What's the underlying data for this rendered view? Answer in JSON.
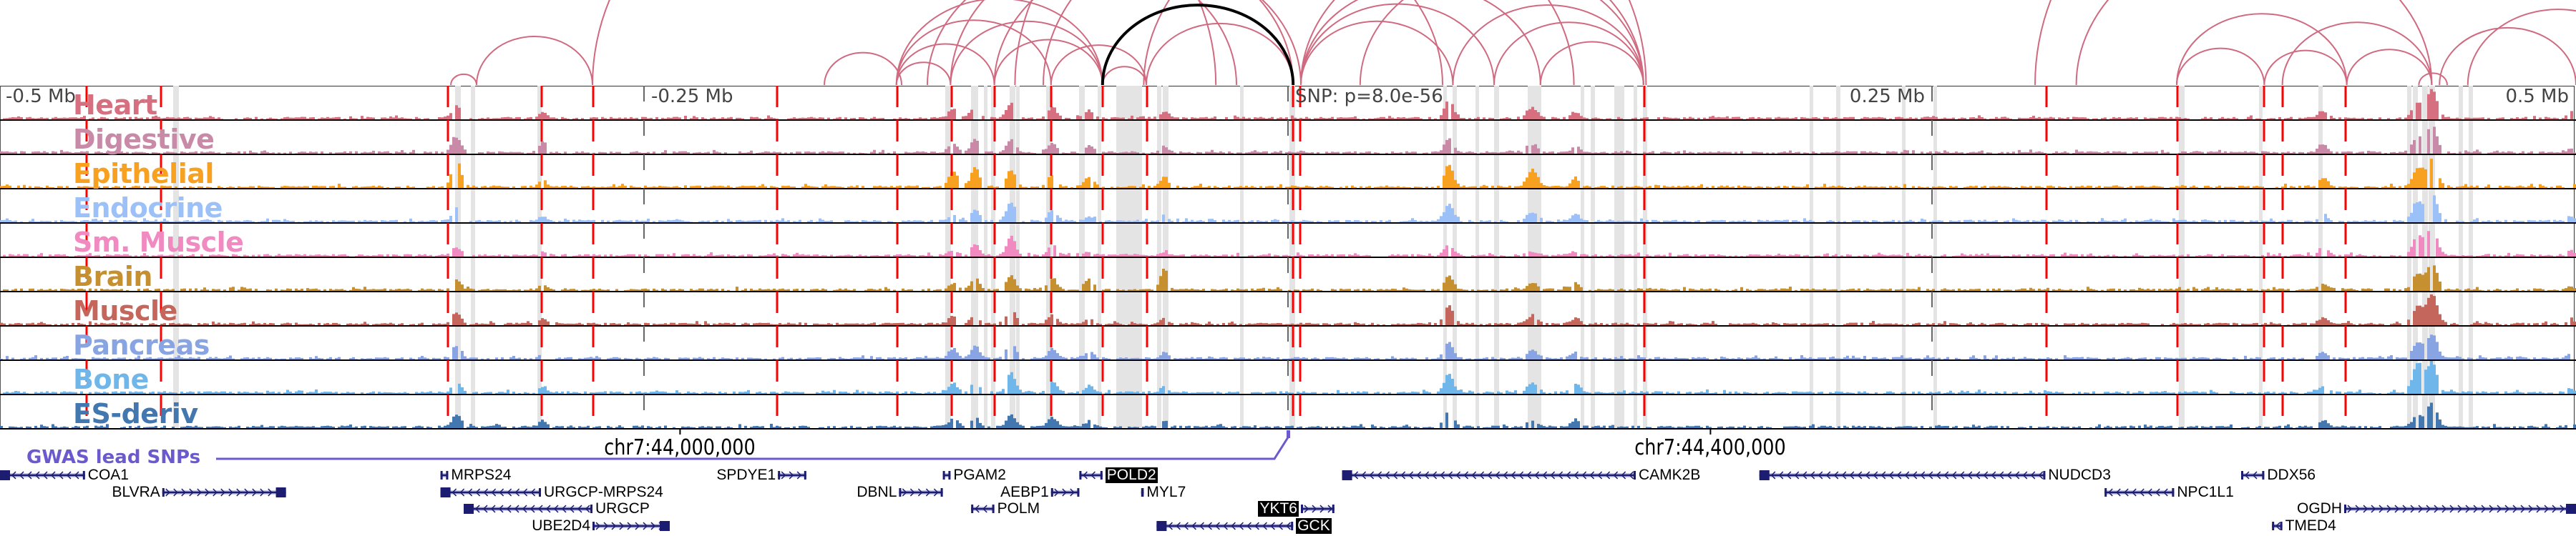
{
  "axis": {
    "left": "-0.5 Mb",
    "left_mid": "-0.25 Mb",
    "right_mid": "0.25 Mb",
    "right": "0.5 Mb"
  },
  "snp_label": "SNP: p=8.0e-56",
  "gwas_label": "GWAS lead SNPs",
  "coordinates": [
    {
      "label": "chr7:44,000,000",
      "kb": -236
    },
    {
      "label": "chr7:44,400,000",
      "kb": 164
    }
  ],
  "tracks": [
    {
      "name": "Heart",
      "color": "#d67080"
    },
    {
      "name": "Digestive",
      "color": "#c98aa8"
    },
    {
      "name": "Epithelial",
      "color": "#f8a020"
    },
    {
      "name": "Endocrine",
      "color": "#9cc0f8"
    },
    {
      "name": "Sm. Muscle",
      "color": "#f08ac0"
    },
    {
      "name": "Brain",
      "color": "#c69030"
    },
    {
      "name": "Muscle",
      "color": "#c4665c"
    },
    {
      "name": "Pancreas",
      "color": "#88a4e2"
    },
    {
      "name": "Bone",
      "color": "#6fb6ea"
    },
    {
      "name": "ES-deriv",
      "color": "#4277b0"
    }
  ],
  "loop_color": "#d06a80",
  "highlight_loop_color": "#000000",
  "loops_kb": [
    [
      -325,
      -315
    ],
    [
      -315,
      -270
    ],
    [
      -270,
      -28
    ],
    [
      -152,
      -131
    ],
    [
      -152,
      -114
    ],
    [
      -152,
      -92
    ],
    [
      -152,
      -72
    ],
    [
      -131,
      -72
    ],
    [
      -114,
      -72
    ],
    [
      -131,
      2
    ],
    [
      -114,
      5
    ],
    [
      -92,
      -55
    ],
    [
      -72,
      -55
    ],
    [
      -55,
      2
    ],
    [
      5,
      64
    ],
    [
      5,
      80
    ],
    [
      5,
      98
    ],
    [
      5,
      138
    ],
    [
      28,
      138
    ],
    [
      64,
      138
    ],
    [
      80,
      138
    ],
    [
      -56,
      111
    ],
    [
      -106,
      139
    ],
    [
      98,
      138
    ],
    [
      -140,
      -20
    ],
    [
      -95,
      60
    ],
    [
      345,
      379
    ],
    [
      345,
      411
    ],
    [
      379,
      411
    ],
    [
      411,
      444
    ],
    [
      386,
      444
    ],
    [
      439,
      450
    ],
    [
      447,
      500
    ],
    [
      458,
      528
    ],
    [
      306,
      444
    ],
    [
      290,
      560
    ],
    [
      -180,
      -150
    ]
  ],
  "highlight_loop_kb": [
    -72,
    2
  ],
  "genes": [
    {
      "name": "COA1",
      "start": -500,
      "end": -467,
      "strand": "-",
      "row": 0,
      "label_side": "right",
      "highlight": false
    },
    {
      "name": "BLVRA",
      "start": -437,
      "end": -389,
      "strand": "+",
      "row": 1,
      "label_side": "left",
      "highlight": false
    },
    {
      "name": "MRPS24",
      "start": -329,
      "end": -326,
      "strand": "-",
      "row": 0,
      "label_side": "right",
      "highlight": false
    },
    {
      "name": "URGCP-MRPS24",
      "start": -329,
      "end": -290,
      "strand": "-",
      "row": 1,
      "label_side": "right",
      "highlight": false
    },
    {
      "name": "URGCP",
      "start": -320,
      "end": -270,
      "strand": "-",
      "row": 2,
      "label_side": "right",
      "highlight": false
    },
    {
      "name": "UBE2D4",
      "start": -270,
      "end": -240,
      "strand": "+",
      "row": 3,
      "label_side": "left",
      "highlight": false
    },
    {
      "name": "SPDYE1",
      "start": -198,
      "end": -187,
      "strand": "+",
      "row": 0,
      "label_side": "left",
      "highlight": false
    },
    {
      "name": "DBNL",
      "start": -151,
      "end": -134,
      "strand": "+",
      "row": 1,
      "label_side": "left",
      "highlight": false
    },
    {
      "name": "PGAM2",
      "start": -134,
      "end": -131,
      "strand": "-",
      "row": 0,
      "label_side": "right",
      "highlight": false
    },
    {
      "name": "AEBP1",
      "start": -92,
      "end": -81,
      "strand": "+",
      "row": 1,
      "label_side": "left",
      "highlight": false
    },
    {
      "name": "POLM",
      "start": -123,
      "end": -114,
      "strand": "-",
      "row": 2,
      "label_side": "right",
      "highlight": false
    },
    {
      "name": "POLD2",
      "start": -81,
      "end": -72,
      "strand": "-",
      "row": 0,
      "label_side": "right",
      "highlight": true
    },
    {
      "name": "MYL7",
      "start": -57,
      "end": -56,
      "strand": "-",
      "row": 1,
      "label_side": "right",
      "highlight": false
    },
    {
      "name": "YKT6",
      "start": 5,
      "end": 18,
      "strand": "+",
      "row": 2,
      "label_side": "left",
      "highlight": true
    },
    {
      "name": "GCK",
      "start": -51,
      "end": 2,
      "strand": "-",
      "row": 3,
      "label_side": "right",
      "highlight": true
    },
    {
      "name": "CAMK2B",
      "start": 21,
      "end": 135,
      "strand": "-",
      "row": 0,
      "label_side": "right",
      "highlight": false
    },
    {
      "name": "NUDCD3",
      "start": 183,
      "end": 294,
      "strand": "-",
      "row": 0,
      "label_side": "right",
      "highlight": false
    },
    {
      "name": "DDX56",
      "start": 370,
      "end": 379,
      "strand": "-",
      "row": 0,
      "label_side": "right",
      "highlight": false
    },
    {
      "name": "NPC1L1",
      "start": 317,
      "end": 344,
      "strand": "-",
      "row": 1,
      "label_side": "right",
      "highlight": false
    },
    {
      "name": "OGDH",
      "start": 410,
      "end": 500,
      "strand": "+",
      "row": 2,
      "label_side": "left",
      "highlight": false
    },
    {
      "name": "TMED4",
      "start": 382,
      "end": 386,
      "strand": "-",
      "row": 3,
      "label_side": "right",
      "highlight": false
    }
  ],
  "gene_color": "#1c1c70"
}
